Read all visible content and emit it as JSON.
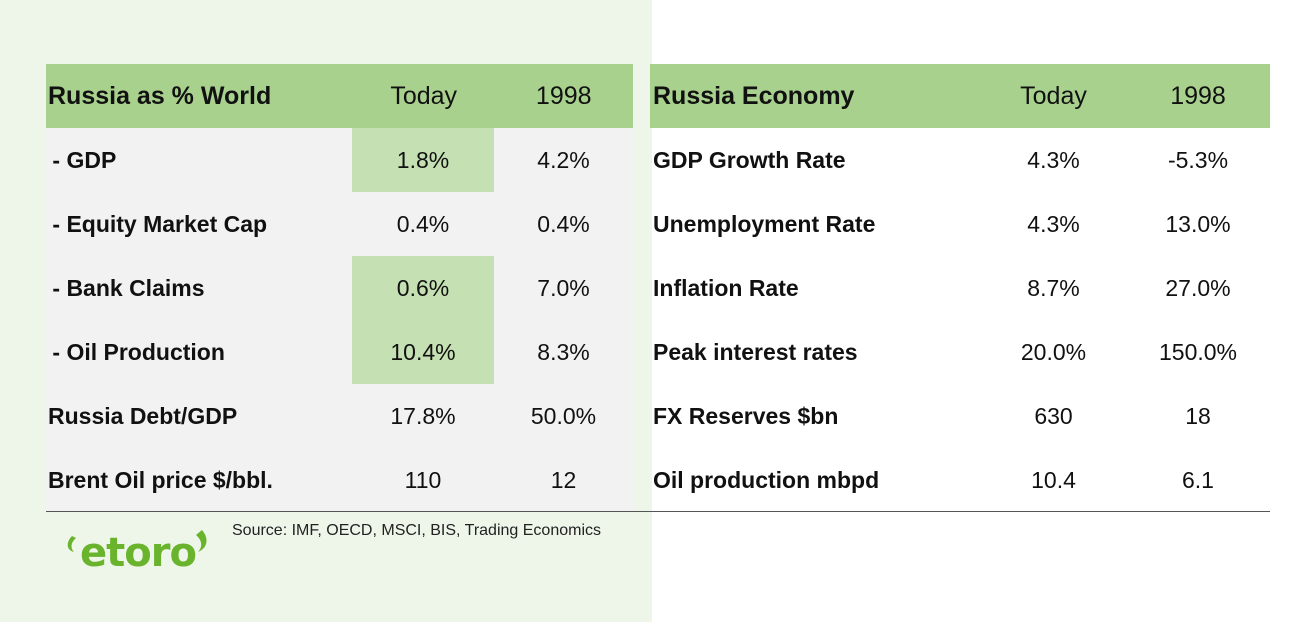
{
  "left_table": {
    "header": {
      "title": "Russia as % World",
      "col1": "Today",
      "col2": "1998"
    },
    "rows": [
      {
        "label": " - GDP",
        "today": "1.8%",
        "y1998": "4.2%"
      },
      {
        "label": " - Equity Market Cap",
        "today": "0.4%",
        "y1998": "0.4%"
      },
      {
        "label": " - Bank Claims",
        "today": "0.6%",
        "y1998": "7.0%"
      },
      {
        "label": " - Oil Production",
        "today": "10.4%",
        "y1998": "8.3%"
      },
      {
        "label": "Russia Debt/GDP",
        "today": "17.8%",
        "y1998": "50.0%"
      },
      {
        "label": "Brent Oil price $/bbl.",
        "today": "110",
        "y1998": "12"
      }
    ]
  },
  "right_table": {
    "header": {
      "title": "Russia Economy",
      "col1": "Today",
      "col2": "1998"
    },
    "rows": [
      {
        "label": "GDP Growth Rate",
        "today": "4.3%",
        "y1998": "-5.3%"
      },
      {
        "label": "Unemployment Rate",
        "today": "4.3%",
        "y1998": "13.0%"
      },
      {
        "label": "Inflation Rate",
        "today": "8.7%",
        "y1998": "27.0%"
      },
      {
        "label": "Peak interest rates",
        "today": "20.0%",
        "y1998": "150.0%"
      },
      {
        "label": "FX Reserves $bn",
        "today": "630",
        "y1998": "18"
      },
      {
        "label": "Oil production mbpd",
        "today": "10.4",
        "y1998": "6.1"
      }
    ]
  },
  "footer": {
    "source": "Source: IMF, OECD, MSCI, BIS, Trading Economics",
    "logo_text": "etoro"
  },
  "colors": {
    "header_green": "#a9d18e",
    "highlight_green": "#c5e0b3",
    "left_panel_bg": "#eef6ea",
    "logo_green": "#6ab42d"
  }
}
